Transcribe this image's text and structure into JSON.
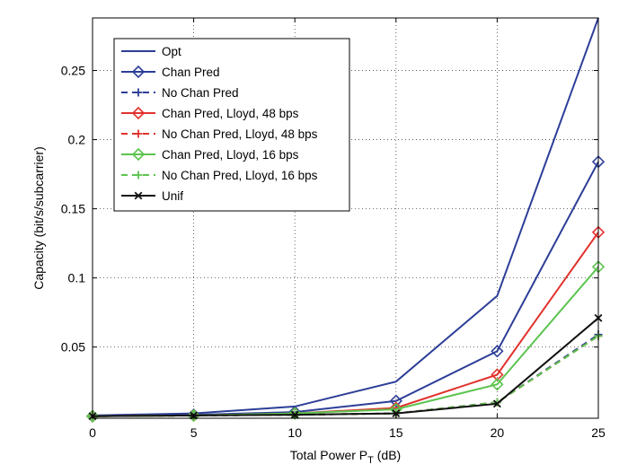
{
  "chart_data": {
    "type": "line",
    "title": "",
    "xlabel": "Total Power P",
    "xlabel_sub": "T",
    "xlabel_unit": "(dB)",
    "ylabel": "Capacity (bit/s/subcarrier)",
    "x": [
      0,
      5,
      10,
      15,
      20,
      25
    ],
    "xlim": [
      0,
      25
    ],
    "ylim": [
      -0.0015,
      0.288
    ],
    "xticks": [
      0,
      5,
      10,
      15,
      20,
      25
    ],
    "xtick_labels": [
      "0",
      "5",
      "10",
      "15",
      "20",
      "25"
    ],
    "yticks": [
      0.05,
      0.1,
      0.15,
      0.2,
      0.25
    ],
    "ytick_labels": [
      "0.05",
      "0.1",
      "0.15",
      "0.2",
      "0.25"
    ],
    "grid": true,
    "legend_position": "top-left",
    "series": [
      {
        "name": "Opt",
        "color": "#2d3e97",
        "dash": "solid",
        "marker": "none",
        "values": [
          0.0005,
          0.002,
          0.007,
          0.025,
          0.087,
          0.288
        ]
      },
      {
        "name": "Chan Pred",
        "color": "#2d3e97",
        "dash": "solid",
        "marker": "diamond",
        "values": [
          0.0,
          0.001,
          0.003,
          0.011,
          0.047,
          0.184
        ]
      },
      {
        "name": "No Chan Pred",
        "color": "#2d3e97",
        "dash": "dashed",
        "marker": "plus",
        "values": [
          0.0,
          0.0005,
          0.001,
          0.002,
          0.01,
          0.059
        ]
      },
      {
        "name": "Chan Pred, Lloyd, 48 bps",
        "color": "#e1312c",
        "dash": "solid",
        "marker": "diamond",
        "values": [
          0.0,
          0.0005,
          0.002,
          0.006,
          0.03,
          0.133
        ]
      },
      {
        "name": "No Chan Pred, Lloyd, 48 bps",
        "color": "#e1312c",
        "dash": "dashed",
        "marker": "plus",
        "values": [
          0.0,
          0.0005,
          0.001,
          0.002,
          0.01,
          0.058
        ]
      },
      {
        "name": "Chan Pred, Lloyd, 16 bps",
        "color": "#5cc44f",
        "dash": "solid",
        "marker": "diamond",
        "values": [
          0.0,
          0.0005,
          0.002,
          0.005,
          0.023,
          0.108
        ]
      },
      {
        "name": "No Chan Pred, Lloyd, 16 bps",
        "color": "#5cc44f",
        "dash": "dashed",
        "marker": "plus",
        "values": [
          0.0,
          0.0005,
          0.001,
          0.002,
          0.01,
          0.058
        ]
      },
      {
        "name": "Unif",
        "color": "#111111",
        "dash": "solid",
        "marker": "x",
        "values": [
          0.0,
          0.0005,
          0.001,
          0.002,
          0.009,
          0.071
        ]
      }
    ]
  }
}
